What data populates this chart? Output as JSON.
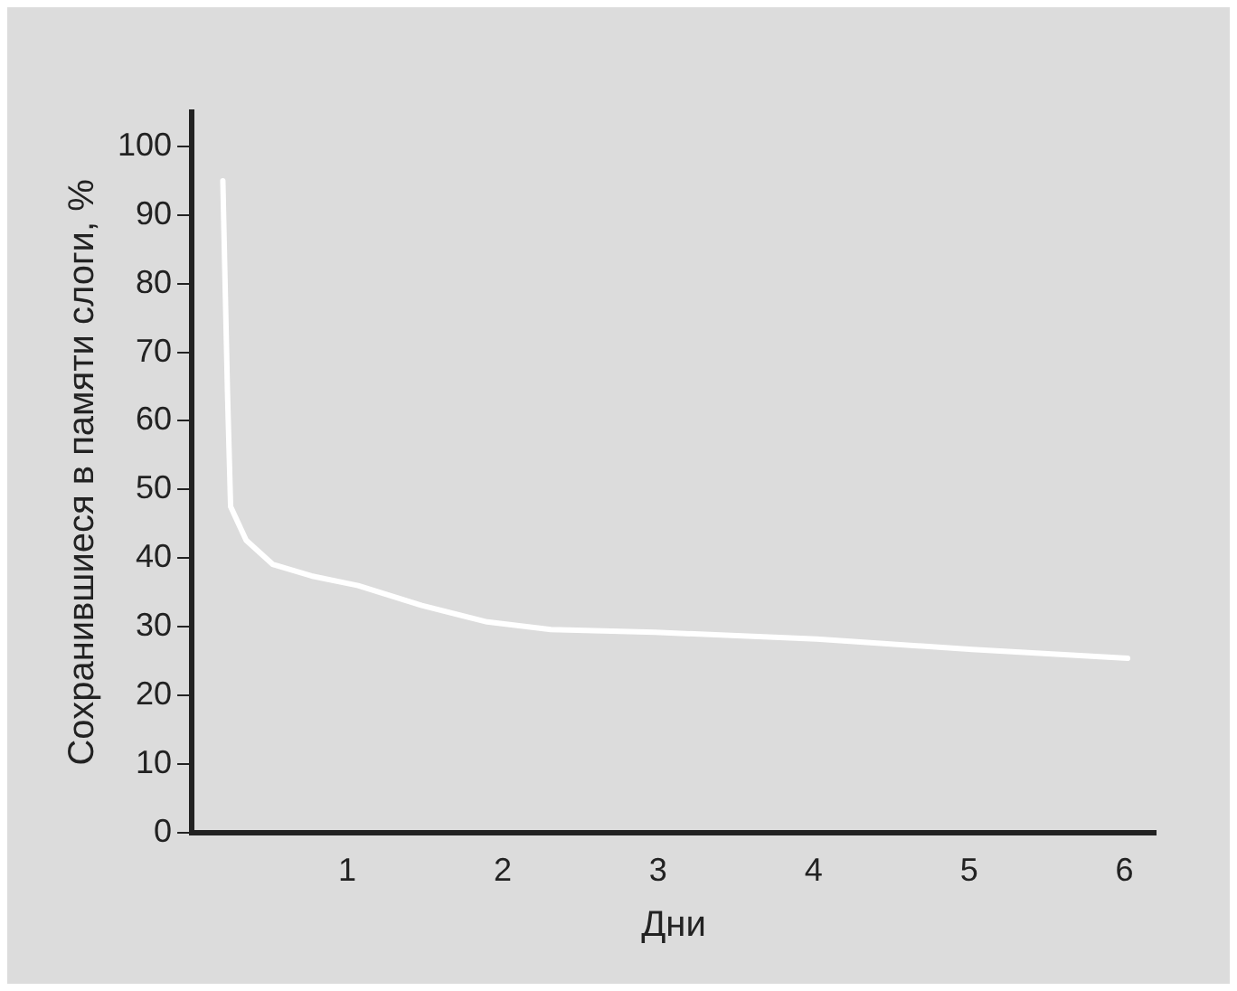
{
  "chart_data": {
    "type": "line",
    "xlabel": "Дни",
    "ylabel": "Сохранившиеся в памяти слоги, %",
    "x": [
      0.2,
      0.23,
      0.25,
      0.35,
      0.52,
      0.77,
      1.07,
      1.48,
      1.9,
      2.31,
      2.98,
      4.02,
      5.02,
      6.02
    ],
    "values": [
      95,
      64,
      47.5,
      42.6,
      39.1,
      37.4,
      36,
      33.1,
      30.7,
      29.6,
      29.2,
      28.2,
      26.7,
      25.4
    ],
    "color": "#ffffff",
    "marker": "none",
    "line_style": "solid",
    "xlim": [
      0,
      6.2
    ],
    "xticks": [
      1,
      2,
      3,
      4,
      5,
      6
    ],
    "ylim": [
      0,
      105
    ],
    "yticks": [
      0,
      10,
      20,
      30,
      40,
      50,
      60,
      70,
      80,
      90,
      100
    ],
    "grid": false,
    "legend": false
  }
}
